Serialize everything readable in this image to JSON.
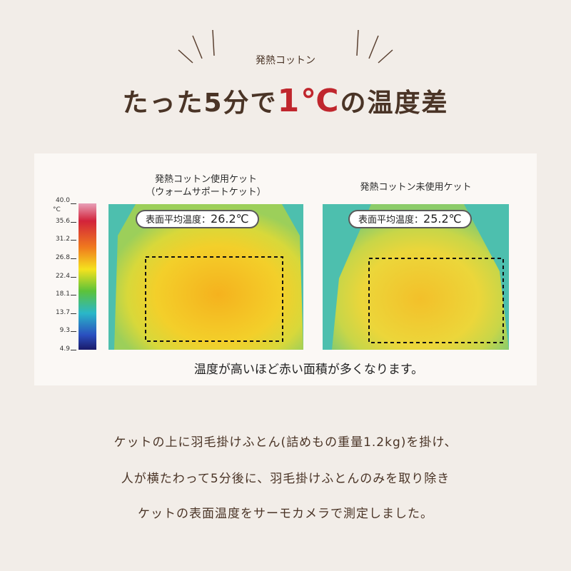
{
  "header": {
    "eyebrow": "発熱コットン",
    "title_lead": "たった5分で",
    "title_highlight": "1℃",
    "title_tail": "の温度差"
  },
  "thermal": {
    "scale": {
      "unit": "°C",
      "ticks": [
        "40.0",
        "35.6",
        "31.2",
        "26.8",
        "22.4",
        "18.1",
        "13.7",
        "9.3",
        "4.9"
      ]
    },
    "images": [
      {
        "caption": [
          "発熱コットン使用ケット",
          "（ウォームサポートケット）"
        ],
        "label": "表面平均温度：",
        "temperature": "26.2℃"
      },
      {
        "caption": [
          "発熱コットン未使用ケット"
        ],
        "label": "表面平均温度：",
        "temperature": "25.2℃"
      }
    ],
    "note": "温度が高いほど赤い面積が多くなります。"
  },
  "body": [
    "ケットの上に羽毛掛けふとん(詰めもの重量1.2kg)を掛け、",
    "人が横たわって5分後に、羽毛掛けふとんのみを取り除き",
    "ケットの表面温度をサーモカメラで測定しました。"
  ]
}
